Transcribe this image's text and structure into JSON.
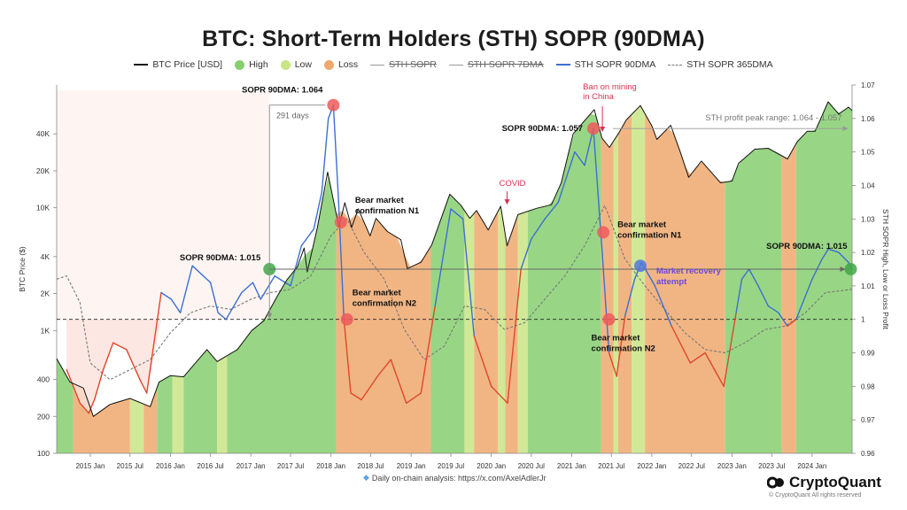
{
  "title": "BTC: Short-Term Holders (STH) SOPR (90DMA)",
  "legend": [
    {
      "label": "BTC Price [USD]",
      "kind": "line",
      "color": "#111111",
      "strike": false
    },
    {
      "label": "High",
      "kind": "dot",
      "color": "#86cf70",
      "strike": false
    },
    {
      "label": "Low",
      "kind": "dot",
      "color": "#c9e584",
      "strike": false
    },
    {
      "label": "Loss",
      "kind": "dot",
      "color": "#eea86f",
      "strike": false
    },
    {
      "label": "STH SOPR",
      "kind": "line",
      "color": "#999999",
      "strike": true
    },
    {
      "label": "STH SOPR 7DMA",
      "kind": "line",
      "color": "#999999",
      "strike": true
    },
    {
      "label": "STH SOPR 90DMA",
      "kind": "line",
      "color": "#3d6fd1",
      "strike": false
    },
    {
      "label": "STH SOPR 365DMA",
      "kind": "dash",
      "color": "#777777",
      "strike": false
    }
  ],
  "footer": {
    "credit_icon": "diamond-hands-icon",
    "credit": "Daily on-chain analysis: https://x.com/AxelAdlerJr",
    "brand": "CryptoQuant",
    "brand_icon": "cryptoquant-logo-icon",
    "rights": "© CryptoQuant All rights reserved"
  },
  "chart_data": {
    "type": "line",
    "xlabel": "",
    "ylabel": "BTC Price ($)",
    "ylabel_right": "STH SOPR High, Low or Loss Profit",
    "x_range": [
      "2014-08-01",
      "2024-07-01"
    ],
    "x_ticks": [
      "2015 Jan",
      "2015 Jul",
      "2016 Jan",
      "2016 Jul",
      "2017 Jan",
      "2017 Jul",
      "2018 Jan",
      "2018 Jul",
      "2019 Jan",
      "2019 Jul",
      "2020 Jan",
      "2020 Jul",
      "2021 Jan",
      "2021 Jul",
      "2022 Jan",
      "2022 Jul",
      "2023 Jan",
      "2023 Jul",
      "2024 Jan"
    ],
    "y_left": {
      "scale": "log",
      "range": [
        100,
        100000
      ],
      "ticks": [
        100,
        200,
        400,
        1000,
        2000,
        4000,
        10000,
        20000,
        40000
      ],
      "tick_labels": [
        "100",
        "200",
        "400",
        "1K",
        "2K",
        "4K",
        "10K",
        "20K",
        "40K"
      ]
    },
    "y_right": {
      "scale": "linear",
      "range": [
        0.96,
        1.07
      ],
      "ticks": [
        0.96,
        0.97,
        0.98,
        0.99,
        1,
        1.01,
        1.02,
        1.03,
        1.04,
        1.05,
        1.06,
        1.07
      ],
      "tick_labels": [
        "0.96",
        "0.97",
        "0.98",
        "0.99",
        "1",
        "1.01",
        "1.02",
        "1.03",
        "1.04",
        "1.05",
        "1.06",
        "1.07"
      ]
    },
    "grid": false,
    "legend_position": "top",
    "reference_line": {
      "axis": "right",
      "value": 1,
      "style": "dashed"
    },
    "regimes": [
      {
        "start": "2014-08-01",
        "end": "2014-10-15",
        "state": "High"
      },
      {
        "start": "2014-10-15",
        "end": "2015-07-01",
        "state": "Loss"
      },
      {
        "start": "2015-07-01",
        "end": "2015-09-01",
        "state": "Low"
      },
      {
        "start": "2015-09-01",
        "end": "2015-11-01",
        "state": "Loss"
      },
      {
        "start": "2015-11-01",
        "end": "2016-01-10",
        "state": "High"
      },
      {
        "start": "2016-01-10",
        "end": "2016-03-01",
        "state": "Low"
      },
      {
        "start": "2016-03-01",
        "end": "2016-08-01",
        "state": "High"
      },
      {
        "start": "2016-08-01",
        "end": "2016-09-15",
        "state": "Low"
      },
      {
        "start": "2016-09-15",
        "end": "2018-01-25",
        "state": "High"
      },
      {
        "start": "2018-01-25",
        "end": "2019-04-01",
        "state": "Loss"
      },
      {
        "start": "2019-04-01",
        "end": "2019-09-01",
        "state": "High"
      },
      {
        "start": "2019-09-01",
        "end": "2019-10-15",
        "state": "Low"
      },
      {
        "start": "2019-10-15",
        "end": "2020-02-01",
        "state": "Loss"
      },
      {
        "start": "2020-02-01",
        "end": "2020-03-05",
        "state": "Low"
      },
      {
        "start": "2020-03-05",
        "end": "2020-05-01",
        "state": "Loss"
      },
      {
        "start": "2020-05-01",
        "end": "2020-06-15",
        "state": "Low"
      },
      {
        "start": "2020-06-15",
        "end": "2021-05-15",
        "state": "High"
      },
      {
        "start": "2021-05-15",
        "end": "2021-07-10",
        "state": "Loss"
      },
      {
        "start": "2021-07-10",
        "end": "2021-08-01",
        "state": "Low"
      },
      {
        "start": "2021-08-01",
        "end": "2021-10-01",
        "state": "Loss"
      },
      {
        "start": "2021-10-01",
        "end": "2021-12-01",
        "state": "Low"
      },
      {
        "start": "2021-12-01",
        "end": "2022-12-01",
        "state": "Loss"
      },
      {
        "start": "2022-12-01",
        "end": "2023-08-15",
        "state": "High"
      },
      {
        "start": "2023-08-15",
        "end": "2023-10-20",
        "state": "Loss"
      },
      {
        "start": "2023-10-20",
        "end": "2024-07-01",
        "state": "High"
      }
    ],
    "series": [
      {
        "name": "BTC Price [USD]",
        "axis": "left",
        "x": [
          "2014-08-01",
          "2014-10-01",
          "2014-12-01",
          "2015-01-15",
          "2015-04-01",
          "2015-07-01",
          "2015-10-01",
          "2015-11-10",
          "2016-01-01",
          "2016-03-01",
          "2016-06-15",
          "2016-08-01",
          "2016-11-01",
          "2017-01-05",
          "2017-03-01",
          "2017-05-01",
          "2017-06-15",
          "2017-08-01",
          "2017-09-01",
          "2017-09-15",
          "2017-11-01",
          "2017-12-17",
          "2018-02-06",
          "2018-03-05",
          "2018-04-05",
          "2018-05-05",
          "2018-06-28",
          "2018-07-25",
          "2018-09-15",
          "2018-11-15",
          "2018-12-15",
          "2019-02-15",
          "2019-04-05",
          "2019-06-26",
          "2019-08-15",
          "2019-09-25",
          "2019-10-26",
          "2019-12-18",
          "2020-02-13",
          "2020-03-13",
          "2020-05-01",
          "2020-07-25",
          "2020-10-01",
          "2020-11-15",
          "2021-01-08",
          "2021-02-15",
          "2021-04-14",
          "2021-05-19",
          "2021-06-22",
          "2021-08-01",
          "2021-09-07",
          "2021-11-10",
          "2022-01-01",
          "2022-01-24",
          "2022-03-28",
          "2022-05-12",
          "2022-06-18",
          "2022-08-15",
          "2022-11-10",
          "2023-01-01",
          "2023-01-31",
          "2023-04-15",
          "2023-06-15",
          "2023-09-11",
          "2023-10-25",
          "2023-12-10",
          "2024-01-15",
          "2024-03-14",
          "2024-05-01",
          "2024-06-15",
          "2024-07-01"
        ],
        "values": [
          590,
          380,
          340,
          200,
          250,
          280,
          240,
          380,
          430,
          420,
          700,
          560,
          700,
          1000,
          1200,
          1900,
          2600,
          3300,
          4700,
          3000,
          7000,
          19500,
          7000,
          11000,
          6900,
          9800,
          5900,
          8200,
          6400,
          5500,
          3200,
          3600,
          5000,
          12900,
          10500,
          8200,
          9500,
          6600,
          10300,
          4900,
          8800,
          9900,
          10600,
          16000,
          40000,
          48000,
          63000,
          37000,
          31000,
          40000,
          52000,
          68000,
          46500,
          36000,
          47000,
          28000,
          17700,
          24000,
          16000,
          16500,
          23000,
          30000,
          30500,
          25000,
          34500,
          42000,
          42000,
          73000,
          58000,
          66000,
          62000
        ]
      },
      {
        "name": "STH SOPR 90DMA",
        "axis": "right",
        "x": [
          "2014-09-15",
          "2014-11-15",
          "2014-12-25",
          "2015-01-20",
          "2015-03-01",
          "2015-04-15",
          "2015-06-15",
          "2015-08-15",
          "2015-09-15",
          "2015-11-20",
          "2016-01-05",
          "2016-02-15",
          "2016-04-10",
          "2016-07-01",
          "2016-08-05",
          "2016-09-10",
          "2016-11-20",
          "2017-01-10",
          "2017-02-15",
          "2017-04-20",
          "2017-07-01",
          "2017-08-20",
          "2017-10-15",
          "2017-11-20",
          "2017-12-20",
          "2018-01-12",
          "2018-02-05",
          "2018-03-01",
          "2018-04-01",
          "2018-05-20",
          "2018-08-01",
          "2018-10-01",
          "2018-12-10",
          "2019-02-15",
          "2019-04-20",
          "2019-07-01",
          "2019-08-25",
          "2019-10-15",
          "2020-01-01",
          "2020-03-15",
          "2020-05-15",
          "2020-07-01",
          "2020-09-01",
          "2020-11-01",
          "2021-01-15",
          "2021-03-01",
          "2021-04-10",
          "2021-05-20",
          "2021-06-20",
          "2021-07-25",
          "2021-09-01",
          "2021-10-15",
          "2021-11-15",
          "2022-01-15",
          "2022-04-01",
          "2022-06-25",
          "2022-09-01",
          "2022-11-25",
          "2023-01-20",
          "2023-02-15",
          "2023-03-20",
          "2023-05-01",
          "2023-06-15",
          "2023-08-01",
          "2023-09-10",
          "2023-10-20",
          "2024-01-01",
          "2024-02-15",
          "2024-03-15",
          "2024-05-01",
          "2024-06-15",
          "2024-07-01"
        ],
        "values": [
          0.985,
          0.975,
          0.972,
          0.976,
          0.985,
          0.993,
          0.991,
          0.982,
          0.978,
          1.008,
          1.006,
          1.002,
          1.016,
          1.011,
          1.002,
          1.0,
          1.008,
          1.011,
          1.006,
          1.013,
          1.01,
          1.022,
          1.027,
          1.038,
          1.06,
          1.064,
          1.035,
          1.0,
          0.978,
          0.976,
          0.983,
          0.988,
          0.975,
          0.978,
          1.004,
          1.033,
          1.03,
          0.995,
          0.98,
          0.975,
          1.015,
          1.024,
          1.03,
          1.035,
          1.05,
          1.046,
          1.057,
          1.02,
          0.99,
          0.983,
          1.001,
          1.012,
          1.017,
          1.01,
          0.998,
          0.987,
          0.99,
          0.98,
          1.002,
          1.012,
          1.015,
          1.01,
          1.004,
          1.002,
          0.998,
          1.0,
          1.012,
          1.018,
          1.021,
          1.02,
          1.017,
          1.015
        ]
      },
      {
        "name": "STH SOPR 365DMA",
        "axis": "right",
        "x": [
          "2014-08-01",
          "2014-09-15",
          "2014-11-15",
          "2015-01-01",
          "2015-04-01",
          "2015-07-01",
          "2015-10-01",
          "2016-01-01",
          "2016-04-01",
          "2016-07-01",
          "2016-10-01",
          "2017-01-01",
          "2017-04-01",
          "2017-07-01",
          "2017-10-01",
          "2018-01-01",
          "2018-03-15",
          "2018-06-01",
          "2018-09-01",
          "2018-12-01",
          "2019-03-01",
          "2019-06-01",
          "2019-09-01",
          "2019-12-01",
          "2020-03-01",
          "2020-06-01",
          "2020-09-01",
          "2020-12-01",
          "2021-03-01",
          "2021-06-01",
          "2021-09-01",
          "2021-12-01",
          "2022-03-01",
          "2022-06-01",
          "2022-09-01",
          "2022-12-01",
          "2023-03-01",
          "2023-06-01",
          "2023-09-01",
          "2023-12-01",
          "2024-03-01",
          "2024-07-01"
        ],
        "values": [
          1.012,
          1.013,
          1.005,
          0.987,
          0.982,
          0.985,
          0.988,
          0.996,
          1.002,
          1.004,
          1.003,
          1.006,
          1.008,
          1.009,
          1.013,
          1.025,
          1.03,
          1.02,
          1.012,
          0.997,
          0.988,
          0.992,
          1.004,
          1.003,
          0.997,
          0.999,
          1.006,
          1.013,
          1.022,
          1.034,
          1.018,
          1.01,
          1.003,
          0.996,
          0.991,
          0.99,
          0.993,
          0.997,
          0.998,
          1.002,
          1.008,
          1.009
        ]
      }
    ],
    "annotations": [
      {
        "text": "SOPR 90DMA: 1.064",
        "date": "2018-01-12",
        "value": 1.064,
        "marker_color": "#ef5b5b"
      },
      {
        "text": "291 days",
        "from": "2017-03-27",
        "to": "2018-01-12"
      },
      {
        "text": "SOPR 90DMA: 1.015",
        "date": "2017-03-27",
        "value": 1.015,
        "marker_color": "#3fa845"
      },
      {
        "text": "Bear market confirmation N1",
        "date": "2018-02-15",
        "value": 1.029,
        "marker_color": "#ef5b5b"
      },
      {
        "text": "Bear market confirmation N2",
        "date": "2018-03-15",
        "value": 1.0,
        "marker_color": "#ef5b5b"
      },
      {
        "text": "COVID",
        "date": "2020-03-13",
        "value": null
      },
      {
        "text": "SOPR 90DMA: 1.057",
        "date": "2021-04-10",
        "value": 1.057,
        "marker_color": "#ef5b5b"
      },
      {
        "text": "Ban on mining in China",
        "date": "2021-05-21",
        "value": null
      },
      {
        "text": "STH profit peak range: 1.064 - 1.057",
        "from": "2021-05-21",
        "to": "2024-06-25"
      },
      {
        "text": "Bear market confirmation N1",
        "date": "2021-05-25",
        "value": 1.026,
        "marker_color": "#ef5b5b"
      },
      {
        "text": "Bear market confirmation N2",
        "date": "2021-06-20",
        "value": 1.0,
        "marker_color": "#ef5b5b"
      },
      {
        "text": "Market recovery attempt",
        "date": "2021-11-10",
        "value": 1.016,
        "marker_color": "#5577dd"
      },
      {
        "text": "SOPR 90DMA: 1.015",
        "date": "2024-06-25",
        "value": 1.015,
        "marker_color": "#3fa845"
      }
    ]
  },
  "colors": {
    "High": "#86cf70",
    "Low": "#c9e584",
    "Loss": "#eea86f",
    "price": "#111111",
    "sopr90_up": "#3d6fd1",
    "sopr90_down": "#e0472a",
    "sopr365": "#777777",
    "below_one_fill": "#fbe1dc",
    "annotation_red": "#d6314f",
    "annotation_purple": "#6b47e0"
  }
}
